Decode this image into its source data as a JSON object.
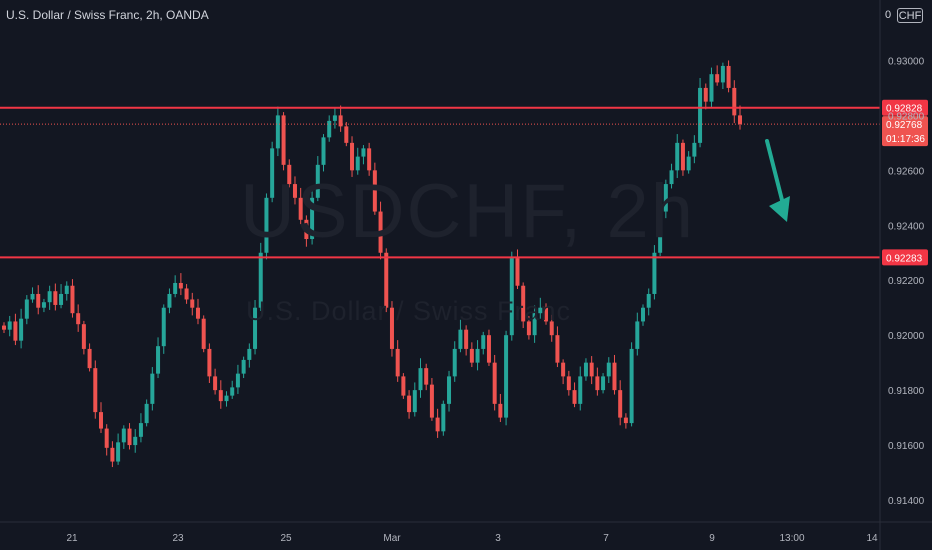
{
  "header": {
    "title": "U.S. Dollar / Swiss Franc, 2h, OANDA",
    "currency_prefix": "0",
    "currency": "CHF"
  },
  "watermark": {
    "symbol": "USDCHF, 2h",
    "name": "U.S. Dollar / Swiss Franc"
  },
  "colors": {
    "background": "#131722",
    "up": "#26a69a",
    "down": "#ef5350",
    "level_line": "#f23645",
    "arrow": "#22ab94",
    "axis_text": "#b2b5be"
  },
  "chart_data": {
    "type": "candlestick",
    "title": "U.S. Dollar / Swiss Franc, 2h, OANDA",
    "symbol": "USDCHF",
    "timeframe": "2h",
    "ylim": [
      0.9132,
      0.9322
    ],
    "y_ticks": [
      "0.93000",
      "0.92800",
      "0.92600",
      "0.92400",
      "0.92200",
      "0.92000",
      "0.91800",
      "0.91600",
      "0.91400"
    ],
    "x_ticks": [
      "21",
      "23",
      "25",
      "Mar",
      "3",
      "7",
      "9",
      "13:00",
      "14"
    ],
    "grid": false,
    "horizontal_levels": [
      {
        "label": "0.92828",
        "value": 0.92828
      },
      {
        "label": "0.92283",
        "value": 0.92283
      }
    ],
    "current_price": {
      "label": "0.92768",
      "value": 0.92768
    },
    "countdown": "01:17:36",
    "annotation": "downward arrow indicating expected decline",
    "series": [
      {
        "name": "USDCHF",
        "close": [
          0.9202,
          0.9205,
          0.9198,
          0.9206,
          0.9213,
          0.9215,
          0.921,
          0.9212,
          0.9216,
          0.9211,
          0.9215,
          0.9218,
          0.9208,
          0.9204,
          0.9195,
          0.9188,
          0.9172,
          0.9166,
          0.9159,
          0.9154,
          0.9161,
          0.9166,
          0.916,
          0.9163,
          0.9168,
          0.9175,
          0.9186,
          0.9196,
          0.921,
          0.9215,
          0.9219,
          0.9217,
          0.9213,
          0.921,
          0.9206,
          0.9195,
          0.9185,
          0.918,
          0.9176,
          0.9178,
          0.9181,
          0.9186,
          0.9191,
          0.9195,
          0.921,
          0.923,
          0.925,
          0.9268,
          0.928,
          0.9262,
          0.9255,
          0.925,
          0.9242,
          0.9235,
          0.925,
          0.9262,
          0.9272,
          0.9278,
          0.928,
          0.9276,
          0.927,
          0.926,
          0.9265,
          0.9268,
          0.926,
          0.9245,
          0.923,
          0.921,
          0.9195,
          0.9185,
          0.9178,
          0.9172,
          0.918,
          0.9188,
          0.9182,
          0.917,
          0.9165,
          0.9175,
          0.9185,
          0.9195,
          0.9202,
          0.9195,
          0.919,
          0.9195,
          0.92,
          0.919,
          0.9175,
          0.917,
          0.92,
          0.9228,
          0.9218,
          0.9205,
          0.92,
          0.9208,
          0.921,
          0.9205,
          0.92,
          0.919,
          0.9185,
          0.918,
          0.9175,
          0.9185,
          0.919,
          0.9185,
          0.918,
          0.9185,
          0.919,
          0.918,
          0.917,
          0.9168,
          0.9195,
          0.9205,
          0.921,
          0.9215,
          0.923,
          0.9245,
          0.9255,
          0.926,
          0.927,
          0.926,
          0.9265,
          0.927,
          0.929,
          0.9285,
          0.9295,
          0.9292,
          0.9298,
          0.929,
          0.928,
          0.92768
        ]
      }
    ]
  }
}
